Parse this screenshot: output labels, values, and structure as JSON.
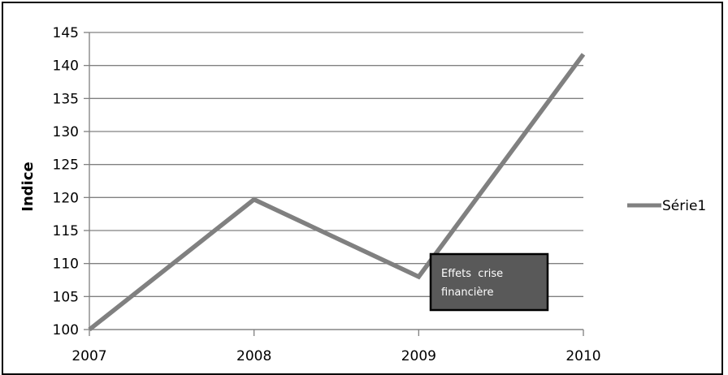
{
  "chart_data": {
    "type": "line",
    "ylabel": "Indice",
    "categories": [
      "2007",
      "2008",
      "2009",
      "2010"
    ],
    "series": [
      {
        "name": "Série1",
        "values": [
          100,
          119.7,
          108,
          141.7
        ],
        "color": "#808080"
      }
    ],
    "ylim": [
      100,
      145
    ],
    "yticks": [
      100,
      105,
      110,
      115,
      120,
      125,
      130,
      135,
      140,
      145
    ],
    "grid": true,
    "legend": "right",
    "annotation": {
      "line1": "Effets  crise",
      "line2": "financière",
      "anchor_category": "2009"
    },
    "colors": {
      "gridline": "#808080",
      "annotation_bg": "#595959",
      "annotation_border": "#000000"
    }
  }
}
